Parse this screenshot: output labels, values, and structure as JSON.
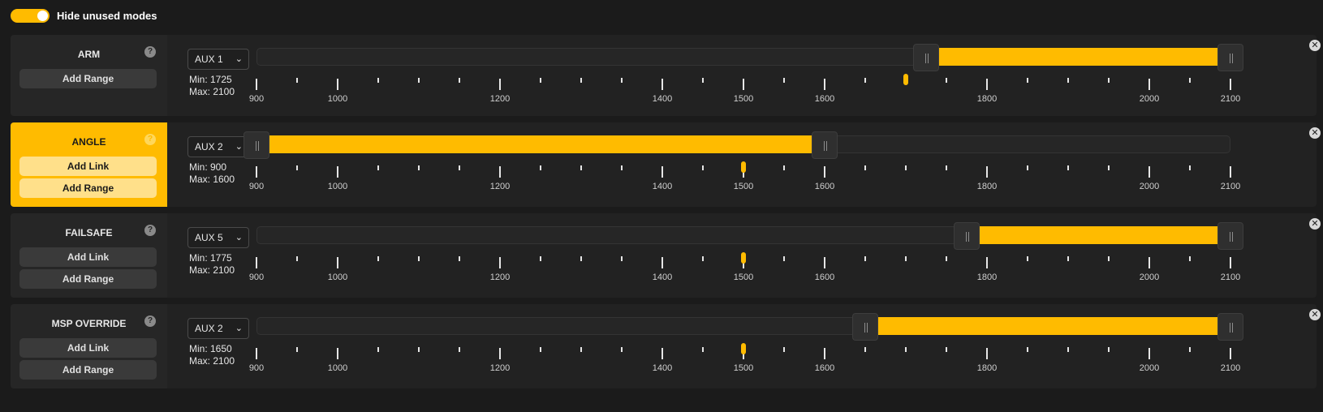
{
  "header": {
    "hide_unused_label": "Hide unused modes",
    "hide_unused_enabled": true
  },
  "colors": {
    "accent": "#ffbb00",
    "background": "#1b1b1b",
    "panel": "#222222"
  },
  "scale": {
    "min": 900,
    "max": 2100,
    "major_ticks": [
      900,
      1000,
      1200,
      1400,
      1500,
      1600,
      1800,
      2000,
      2100
    ],
    "minor_ticks": [
      950,
      1050,
      1100,
      1150,
      1250,
      1300,
      1350,
      1450,
      1550,
      1650,
      1700,
      1750,
      1850,
      1900,
      1950,
      2050
    ]
  },
  "modes": [
    {
      "name": "ARM",
      "active": false,
      "buttons": [
        "Add Range"
      ],
      "aux": "AUX 1",
      "min_label": "Min: 1725",
      "max_label": "Max: 2100",
      "range_min": 1725,
      "range_max": 2100,
      "channel_value": 1700
    },
    {
      "name": "ANGLE",
      "active": true,
      "buttons": [
        "Add Link",
        "Add Range"
      ],
      "aux": "AUX 2",
      "min_label": "Min: 900",
      "max_label": "Max: 1600",
      "range_min": 900,
      "range_max": 1600,
      "channel_value": 1500
    },
    {
      "name": "FAILSAFE",
      "active": false,
      "buttons": [
        "Add Link",
        "Add Range"
      ],
      "aux": "AUX 5",
      "min_label": "Min: 1775",
      "max_label": "Max: 2100",
      "range_min": 1775,
      "range_max": 2100,
      "channel_value": 1500
    },
    {
      "name": "MSP OVERRIDE",
      "active": false,
      "buttons": [
        "Add Link",
        "Add Range"
      ],
      "aux": "AUX 2",
      "min_label": "Min: 1650",
      "max_label": "Max: 2100",
      "range_min": 1650,
      "range_max": 2100,
      "channel_value": 1500
    }
  ]
}
